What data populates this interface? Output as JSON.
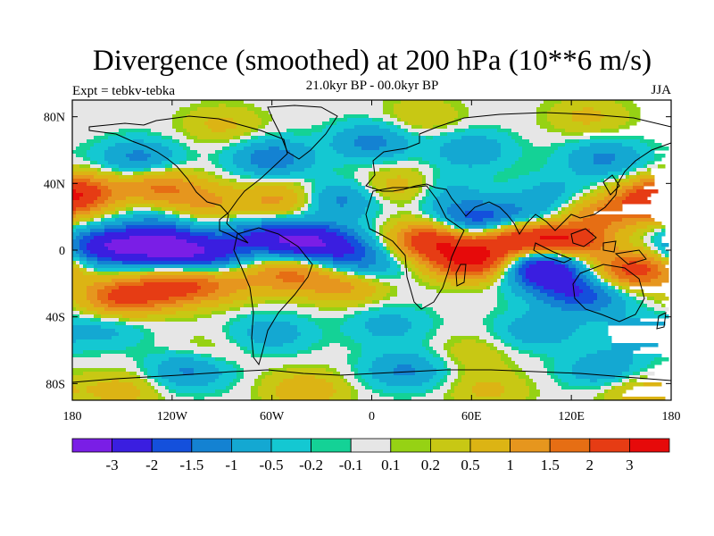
{
  "header": {
    "title": "Divergence (smoothed) at 200 hPa (10**6 m/s)",
    "subtitle": "21.0kyr BP - 00.0kyr BP",
    "experiment": "Expt = tebkv-tebka",
    "season": "JJA"
  },
  "chart_data": {
    "type": "heatmap",
    "title": "Divergence (smoothed) at 200 hPa (10**6 m/s)",
    "subtitle": "21.0kyr BP - 00.0kyr BP",
    "xlabel": "",
    "ylabel": "",
    "xlim": [
      -180,
      180
    ],
    "ylim": [
      -90,
      90
    ],
    "x_ticks": [
      {
        "value": -180,
        "label": "180"
      },
      {
        "value": -120,
        "label": "120W"
      },
      {
        "value": -60,
        "label": "60W"
      },
      {
        "value": 0,
        "label": "0"
      },
      {
        "value": 60,
        "label": "60E"
      },
      {
        "value": 120,
        "label": "120E"
      },
      {
        "value": 180,
        "label": "180"
      }
    ],
    "y_ticks": [
      {
        "value": 80,
        "label": "80N"
      },
      {
        "value": 40,
        "label": "40N"
      },
      {
        "value": 0,
        "label": "0"
      },
      {
        "value": -40,
        "label": "40S"
      },
      {
        "value": -80,
        "label": "80S"
      }
    ],
    "colorbar": {
      "levels": [
        "-3",
        "-2",
        "-1.5",
        "-1",
        "-0.5",
        "-0.2",
        "-0.1",
        "0.1",
        "0.2",
        "0.5",
        "1",
        "1.5",
        "2",
        "3"
      ],
      "colors": [
        "#7a1ee6",
        "#3a1ee0",
        "#1450dc",
        "#1482d2",
        "#14a8d2",
        "#14c8d2",
        "#14d296",
        "#e6e6e6",
        "#96d214",
        "#c8c814",
        "#dcb414",
        "#e6961e",
        "#e66e14",
        "#e63c14",
        "#e60a0a"
      ]
    },
    "field": {
      "background_value": 0,
      "features": [
        {
          "lon": -160,
          "lat": 2,
          "value": -2.5
        },
        {
          "lon": -128,
          "lat": 2,
          "value": -2.8
        },
        {
          "lon": -100,
          "lat": -2,
          "value": -2.2
        },
        {
          "lon": -72,
          "lat": 8,
          "value": -1.2
        },
        {
          "lon": -45,
          "lat": 6,
          "value": -2.6
        },
        {
          "lon": -20,
          "lat": 2,
          "value": -1.6
        },
        {
          "lon": -5,
          "lat": -10,
          "value": -1.2
        },
        {
          "lon": 60,
          "lat": 18,
          "value": -1.8
        },
        {
          "lon": 90,
          "lat": 20,
          "value": -1.0
        },
        {
          "lon": 102,
          "lat": -8,
          "value": -3.0
        },
        {
          "lon": 130,
          "lat": -28,
          "value": -1.5
        },
        {
          "lon": 110,
          "lat": -20,
          "value": -1.2
        },
        {
          "lon": -150,
          "lat": -28,
          "value": 2.2
        },
        {
          "lon": -118,
          "lat": -22,
          "value": 2.0
        },
        {
          "lon": -90,
          "lat": -20,
          "value": 1.0
        },
        {
          "lon": -50,
          "lat": -14,
          "value": 1.6
        },
        {
          "lon": -15,
          "lat": -20,
          "value": 1.4
        },
        {
          "lon": 35,
          "lat": 6,
          "value": 2.6
        },
        {
          "lon": 60,
          "lat": -6,
          "value": 3.2
        },
        {
          "lon": 88,
          "lat": 6,
          "value": 2.8
        },
        {
          "lon": 118,
          "lat": 5,
          "value": 2.8
        },
        {
          "lon": 158,
          "lat": -12,
          "value": 2.4
        },
        {
          "lon": 170,
          "lat": 30,
          "value": 2.0
        },
        {
          "lon": -175,
          "lat": 35,
          "value": 1.8
        },
        {
          "lon": -128,
          "lat": 38,
          "value": 1.5
        },
        {
          "lon": -100,
          "lat": 28,
          "value": 1.0
        },
        {
          "lon": -55,
          "lat": 30,
          "value": 1.2
        },
        {
          "lon": 20,
          "lat": 38,
          "value": 1.0
        },
        {
          "lon": 140,
          "lat": 22,
          "value": 1.4
        },
        {
          "lon": -130,
          "lat": 15,
          "value": -0.8
        },
        {
          "lon": -20,
          "lat": 30,
          "value": -1.2
        },
        {
          "lon": 40,
          "lat": 36,
          "value": -0.8
        },
        {
          "lon": 110,
          "lat": 35,
          "value": -0.6
        },
        {
          "lon": -140,
          "lat": 55,
          "value": -1.2
        },
        {
          "lon": -60,
          "lat": 55,
          "value": -1.4
        },
        {
          "lon": 0,
          "lat": 65,
          "value": -1.2
        },
        {
          "lon": 60,
          "lat": 60,
          "value": -0.9
        },
        {
          "lon": 140,
          "lat": 55,
          "value": -1.1
        },
        {
          "lon": -90,
          "lat": 75,
          "value": 0.6
        },
        {
          "lon": 30,
          "lat": 80,
          "value": 0.5
        },
        {
          "lon": 130,
          "lat": 80,
          "value": 0.6
        },
        {
          "lon": -160,
          "lat": -48,
          "value": -0.6
        },
        {
          "lon": -60,
          "lat": -50,
          "value": -0.8
        },
        {
          "lon": 10,
          "lat": -45,
          "value": -0.7
        },
        {
          "lon": 100,
          "lat": -48,
          "value": -0.9
        },
        {
          "lon": 160,
          "lat": -50,
          "value": -0.7
        },
        {
          "lon": -110,
          "lat": -72,
          "value": -1.2
        },
        {
          "lon": 20,
          "lat": -72,
          "value": -1.1
        },
        {
          "lon": 140,
          "lat": -72,
          "value": -1.0
        },
        {
          "lon": -150,
          "lat": -84,
          "value": 0.7
        },
        {
          "lon": -40,
          "lat": -84,
          "value": 0.9
        },
        {
          "lon": 70,
          "lat": -84,
          "value": 0.6
        },
        {
          "lon": 160,
          "lat": -84,
          "value": 0.8
        },
        {
          "lon": -100,
          "lat": -62,
          "value": 0.4
        },
        {
          "lon": 60,
          "lat": -62,
          "value": 0.4
        }
      ]
    }
  }
}
